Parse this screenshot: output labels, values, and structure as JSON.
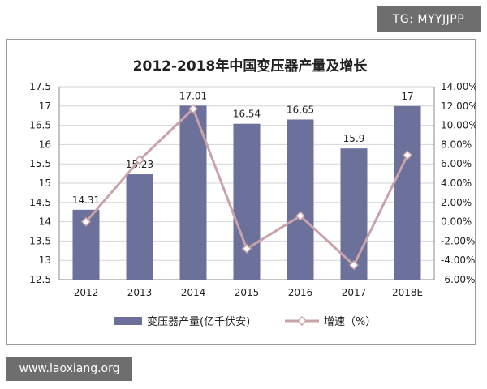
{
  "watermark_top": "TG: MYYJJPP",
  "watermark_bottom": "www.laoxiang.org",
  "chart_data": {
    "type": "bar",
    "title": "2012-2018年中国变压器产量及增长",
    "categories": [
      "2012",
      "2013",
      "2014",
      "2015",
      "2016",
      "2017",
      "2018E"
    ],
    "ylim_left": [
      12.5,
      17.5
    ],
    "yticks_left": [
      "17.5",
      "17",
      "16.5",
      "16",
      "15.5",
      "15",
      "14.5",
      "14",
      "13.5",
      "13",
      "12.5"
    ],
    "ylim_right": [
      -6,
      14
    ],
    "yticks_right": [
      "14.00%",
      "12.00%",
      "10.00%",
      "8.00%",
      "6.00%",
      "4.00%",
      "2.00%",
      "0.00%",
      "-2.00%",
      "-4.00%",
      "-6.00%"
    ],
    "grid": true,
    "legend_position": "bottom",
    "series": [
      {
        "name": "变压器产量(亿千伏安)",
        "type": "bar",
        "axis": "left",
        "color": "#6b719a",
        "values": [
          14.31,
          15.23,
          17.01,
          16.54,
          16.65,
          15.9,
          17
        ],
        "labels": [
          "14.31",
          "15.23",
          "17.01",
          "16.54",
          "16.65",
          "15.9",
          "17"
        ]
      },
      {
        "name": "增速（%）",
        "type": "line",
        "axis": "right",
        "color": "#c9a3a9",
        "values": [
          0.0,
          6.4,
          11.7,
          -2.8,
          0.6,
          -4.5,
          6.9
        ]
      }
    ]
  }
}
